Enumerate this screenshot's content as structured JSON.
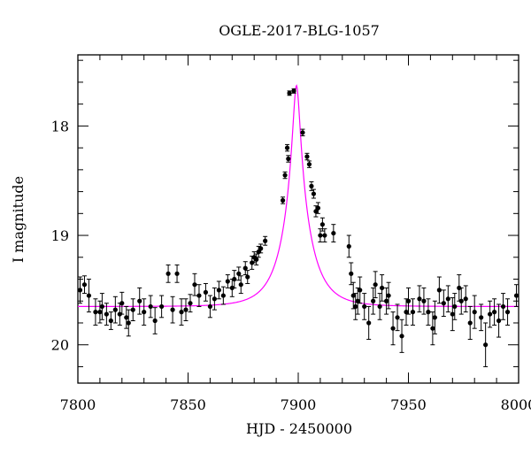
{
  "chart_data": {
    "type": "scatter",
    "title": "OGLE-2017-BLG-1057",
    "xlabel": "HJD - 2450000",
    "ylabel": "I magnitude",
    "xlim": [
      7800,
      8000
    ],
    "ylim": [
      20.35,
      17.35
    ],
    "y_inverted": true,
    "grid": false,
    "x_ticks": [
      7800,
      7850,
      7900,
      7950,
      8000
    ],
    "y_ticks": [
      18,
      19,
      20
    ],
    "colors": {
      "points": "#000000",
      "model": "#ff00ff"
    },
    "model": {
      "name": "",
      "t0": 7899.2,
      "baseline_mag": 19.65,
      "peak_mag": 17.63,
      "u0": 0.12,
      "tE": 12
    },
    "series": [
      {
        "name": "",
        "x": [
          7801,
          7803,
          7805,
          7808,
          7810,
          7811,
          7813,
          7815,
          7817,
          7819,
          7820,
          7822,
          7823,
          7825,
          7828,
          7830,
          7833,
          7835,
          7838,
          7841,
          7843,
          7845,
          7847,
          7849,
          7851,
          7853,
          7855,
          7858,
          7860,
          7862,
          7864,
          7866,
          7868,
          7870,
          7871,
          7873,
          7874,
          7876,
          7877,
          7879,
          7880,
          7881,
          7882,
          7883,
          7885,
          7893,
          7894,
          7895,
          7895.5,
          7896,
          7898,
          7902,
          7904,
          7905,
          7906,
          7907,
          7908,
          7909,
          7910,
          7911,
          7912,
          7916,
          7923,
          7924,
          7925,
          7926,
          7927,
          7928,
          7930,
          7932,
          7934,
          7935,
          7937,
          7938,
          7940,
          7941,
          7943,
          7945,
          7947,
          7949,
          7950,
          7952,
          7955,
          7957,
          7959,
          7961,
          7962,
          7964,
          7966,
          7968,
          7970,
          7971,
          7973,
          7974,
          7976,
          7978,
          7980,
          7983,
          7985,
          7987,
          7989,
          7991,
          7993,
          7995,
          7999
        ],
        "y": [
          19.5,
          19.45,
          19.55,
          19.7,
          19.7,
          19.65,
          19.72,
          19.78,
          19.68,
          19.72,
          19.62,
          19.75,
          19.8,
          19.68,
          19.6,
          19.7,
          19.65,
          19.78,
          19.65,
          19.35,
          19.68,
          19.35,
          19.7,
          19.68,
          19.62,
          19.45,
          19.55,
          19.52,
          19.65,
          19.58,
          19.5,
          19.55,
          19.42,
          19.48,
          19.4,
          19.35,
          19.45,
          19.3,
          19.38,
          19.25,
          19.2,
          19.22,
          19.15,
          19.12,
          19.05,
          18.68,
          18.45,
          18.2,
          18.3,
          17.7,
          17.68,
          18.06,
          18.28,
          18.35,
          18.55,
          18.62,
          18.78,
          18.75,
          19.0,
          18.9,
          19.0,
          18.98,
          19.1,
          19.35,
          19.55,
          19.65,
          19.6,
          19.5,
          19.65,
          19.8,
          19.6,
          19.45,
          19.65,
          19.48,
          19.6,
          19.55,
          19.85,
          19.75,
          19.92,
          19.7,
          19.6,
          19.7,
          19.58,
          19.6,
          19.7,
          19.85,
          19.75,
          19.5,
          19.62,
          19.58,
          19.72,
          19.65,
          19.48,
          19.6,
          19.58,
          19.8,
          19.7,
          19.75,
          20.0,
          19.72,
          19.7,
          19.78,
          19.65,
          19.7,
          19.55
        ],
        "err": [
          0.12,
          0.08,
          0.15,
          0.12,
          0.1,
          0.12,
          0.1,
          0.08,
          0.12,
          0.1,
          0.1,
          0.1,
          0.12,
          0.1,
          0.12,
          0.12,
          0.1,
          0.12,
          0.1,
          0.08,
          0.12,
          0.08,
          0.12,
          0.1,
          0.08,
          0.1,
          0.1,
          0.08,
          0.1,
          0.1,
          0.08,
          0.08,
          0.06,
          0.08,
          0.08,
          0.06,
          0.08,
          0.06,
          0.06,
          0.06,
          0.05,
          0.05,
          0.05,
          0.04,
          0.04,
          0.03,
          0.03,
          0.03,
          0.03,
          0.02,
          0.02,
          0.03,
          0.03,
          0.03,
          0.04,
          0.04,
          0.05,
          0.05,
          0.06,
          0.06,
          0.06,
          0.08,
          0.1,
          0.1,
          0.12,
          0.12,
          0.12,
          0.12,
          0.12,
          0.15,
          0.12,
          0.12,
          0.12,
          0.12,
          0.12,
          0.12,
          0.15,
          0.12,
          0.15,
          0.12,
          0.12,
          0.12,
          0.12,
          0.12,
          0.12,
          0.15,
          0.15,
          0.12,
          0.12,
          0.12,
          0.15,
          0.12,
          0.12,
          0.12,
          0.12,
          0.15,
          0.15,
          0.12,
          0.2,
          0.12,
          0.12,
          0.15,
          0.12,
          0.12,
          0.1
        ]
      }
    ]
  }
}
